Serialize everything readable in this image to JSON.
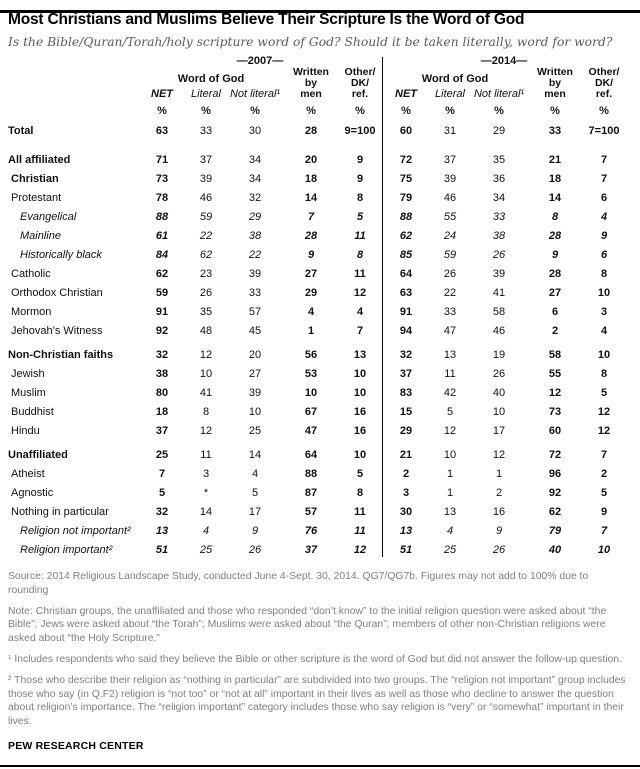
{
  "chart_data": {
    "type": "table",
    "title": "Most Christians and Muslims Believe Their Scripture Is the Word of God",
    "subtitle": "Is the Bible/Quran/Torah/holy scripture word of God? Should it be taken literally, word for word?",
    "year_groups": [
      "—2007—",
      "—2014—"
    ],
    "group_span_label": "Word of God",
    "columns": [
      "NET",
      "Literal",
      "Not literal¹",
      "Written by men",
      "Other/DK/ref."
    ],
    "col_labels": {
      "net": "NET",
      "literal": "Literal",
      "not_literal": "Not literal¹",
      "written_lines": [
        "Written",
        "by",
        "men"
      ],
      "other_lines": [
        "Other/",
        "DK/",
        "ref."
      ],
      "percent": "%"
    },
    "rows": [
      {
        "label": "Total",
        "style": "bold",
        "indent": 0,
        "gap_before": 0,
        "values_2007": [
          "63",
          "33",
          "30",
          "28",
          "9=100"
        ],
        "values_2014": [
          "60",
          "31",
          "29",
          "33",
          "7=100"
        ]
      },
      {
        "label": "All affiliated",
        "style": "bold",
        "indent": 0,
        "gap_before": 10,
        "values_2007": [
          "71",
          "37",
          "34",
          "20",
          "9"
        ],
        "values_2014": [
          "72",
          "37",
          "35",
          "21",
          "7"
        ]
      },
      {
        "label": "Christian",
        "style": "bold",
        "indent": 1,
        "gap_before": 0,
        "values_2007": [
          "73",
          "39",
          "34",
          "18",
          "9"
        ],
        "values_2014": [
          "75",
          "39",
          "36",
          "18",
          "7"
        ]
      },
      {
        "label": "Protestant",
        "style": "regular",
        "indent": 1,
        "gap_before": 0,
        "values_2007": [
          "78",
          "46",
          "32",
          "14",
          "8"
        ],
        "values_2014": [
          "79",
          "46",
          "34",
          "14",
          "6"
        ]
      },
      {
        "label": "Evangelical",
        "style": "italic",
        "indent": 2,
        "gap_before": 0,
        "values_2007": [
          "88",
          "59",
          "29",
          "7",
          "5"
        ],
        "values_2014": [
          "88",
          "55",
          "33",
          "8",
          "4"
        ]
      },
      {
        "label": "Mainline",
        "style": "italic",
        "indent": 2,
        "gap_before": 0,
        "values_2007": [
          "61",
          "22",
          "38",
          "28",
          "11"
        ],
        "values_2014": [
          "62",
          "24",
          "38",
          "28",
          "9"
        ]
      },
      {
        "label": "Historically black",
        "style": "italic",
        "indent": 2,
        "gap_before": 0,
        "values_2007": [
          "84",
          "62",
          "22",
          "9",
          "8"
        ],
        "values_2014": [
          "85",
          "59",
          "26",
          "9",
          "6"
        ]
      },
      {
        "label": "Catholic",
        "style": "regular",
        "indent": 1,
        "gap_before": 0,
        "values_2007": [
          "62",
          "23",
          "39",
          "27",
          "11"
        ],
        "values_2014": [
          "64",
          "26",
          "39",
          "28",
          "8"
        ]
      },
      {
        "label": "Orthodox Christian",
        "style": "regular",
        "indent": 1,
        "gap_before": 0,
        "values_2007": [
          "59",
          "26",
          "33",
          "29",
          "12"
        ],
        "values_2014": [
          "63",
          "22",
          "41",
          "27",
          "10"
        ]
      },
      {
        "label": "Mormon",
        "style": "regular",
        "indent": 1,
        "gap_before": 0,
        "values_2007": [
          "91",
          "35",
          "57",
          "4",
          "4"
        ],
        "values_2014": [
          "91",
          "33",
          "58",
          "6",
          "3"
        ]
      },
      {
        "label": "Jehovah’s Witness",
        "style": "regular",
        "indent": 1,
        "gap_before": 0,
        "values_2007": [
          "92",
          "48",
          "45",
          "1",
          "7"
        ],
        "values_2014": [
          "94",
          "47",
          "46",
          "2",
          "4"
        ]
      },
      {
        "label": "Non-Christian faiths",
        "style": "bold",
        "indent": 0,
        "gap_before": 5,
        "values_2007": [
          "32",
          "12",
          "20",
          "56",
          "13"
        ],
        "values_2014": [
          "32",
          "13",
          "19",
          "58",
          "10"
        ]
      },
      {
        "label": "Jewish",
        "style": "regular",
        "indent": 1,
        "gap_before": 0,
        "values_2007": [
          "38",
          "10",
          "27",
          "53",
          "10"
        ],
        "values_2014": [
          "37",
          "11",
          "26",
          "55",
          "8"
        ]
      },
      {
        "label": "Muslim",
        "style": "regular",
        "indent": 1,
        "gap_before": 0,
        "values_2007": [
          "80",
          "41",
          "39",
          "10",
          "10"
        ],
        "values_2014": [
          "83",
          "42",
          "40",
          "12",
          "5"
        ]
      },
      {
        "label": "Buddhist",
        "style": "regular",
        "indent": 1,
        "gap_before": 0,
        "values_2007": [
          "18",
          "8",
          "10",
          "67",
          "16"
        ],
        "values_2014": [
          "15",
          "5",
          "10",
          "73",
          "12"
        ]
      },
      {
        "label": "Hindu",
        "style": "regular",
        "indent": 1,
        "gap_before": 0,
        "values_2007": [
          "37",
          "12",
          "25",
          "47",
          "16"
        ],
        "values_2014": [
          "29",
          "12",
          "17",
          "60",
          "12"
        ]
      },
      {
        "label": "Unaffiliated",
        "style": "bold",
        "indent": 0,
        "gap_before": 5,
        "values_2007": [
          "25",
          "11",
          "14",
          "64",
          "10"
        ],
        "values_2014": [
          "21",
          "10",
          "12",
          "72",
          "7"
        ]
      },
      {
        "label": "Atheist",
        "style": "regular",
        "indent": 1,
        "gap_before": 0,
        "values_2007": [
          "7",
          "3",
          "4",
          "88",
          "5"
        ],
        "values_2014": [
          "2",
          "1",
          "1",
          "96",
          "2"
        ]
      },
      {
        "label": "Agnostic",
        "style": "regular",
        "indent": 1,
        "gap_before": 0,
        "values_2007": [
          "5",
          "*",
          "5",
          "87",
          "8"
        ],
        "values_2014": [
          "3",
          "1",
          "2",
          "92",
          "5"
        ]
      },
      {
        "label": "Nothing in particular",
        "style": "regular",
        "indent": 1,
        "gap_before": 0,
        "values_2007": [
          "32",
          "14",
          "17",
          "57",
          "11"
        ],
        "values_2014": [
          "30",
          "13",
          "16",
          "62",
          "9"
        ]
      },
      {
        "label": "Religion not important²",
        "style": "italic",
        "indent": 2,
        "gap_before": 0,
        "values_2007": [
          "13",
          "4",
          "9",
          "76",
          "11"
        ],
        "values_2014": [
          "13",
          "4",
          "9",
          "79",
          "7"
        ]
      },
      {
        "label": "Religion important²",
        "style": "italic",
        "indent": 2,
        "gap_before": 0,
        "values_2007": [
          "51",
          "25",
          "26",
          "37",
          "12"
        ],
        "values_2014": [
          "51",
          "25",
          "26",
          "40",
          "10"
        ]
      }
    ]
  },
  "footer": {
    "source": "Source: 2014 Religious Landscape Study, conducted June 4-Sept. 30, 2014. QG7/QG7b. Figures may not add to 100% due to rounding",
    "note": "Note: Christian groups, the unaffiliated and those who responded “don’t know” to the initial religion question were asked about “the Bible”; Jews were asked about “the Torah”; Muslims were asked about “the Quran”; members of other non-Christian religions were asked about “the Holy Scripture.”",
    "footnote1": "¹ Includes respondents who said they believe the Bible or other scripture is the word of God but did not answer the follow-up question.",
    "footnote2": "² Those who describe their religion as “nothing in particular” are subdivided into two groups. The “religion not important” group includes those who say (in Q.F2) religion is “not too” or “not at all” important in their lives as well as those who decline to answer the question about religion’s importance. The “religion important” category includes those who say religion is “very” or “somewhat” important in their lives.",
    "brand": "PEW RESEARCH CENTER"
  },
  "colors": {
    "rule": "#000000",
    "text": "#111111",
    "subtitle_gray": "#5b5b5b",
    "note_gray": "#7f7f7f"
  }
}
